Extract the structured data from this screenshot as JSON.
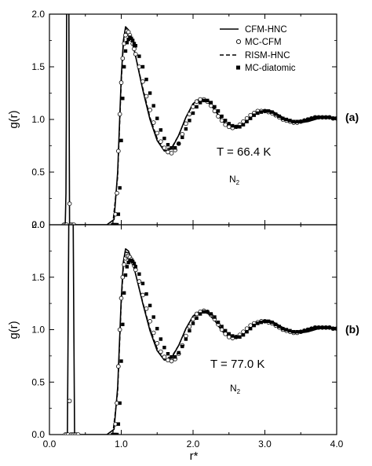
{
  "chart_data": [
    {
      "type": "line",
      "panel_label": "(a)",
      "ylabel": "g(r)",
      "xlabel": "",
      "xlim": [
        0.0,
        4.0
      ],
      "ylim": [
        0.0,
        2.0
      ],
      "y_ticks": [
        "0.0",
        "0.5",
        "1.0",
        "1.5",
        "2.0"
      ],
      "x_ticks": [],
      "annotation_temp": "T = 66.4 K",
      "annotation_mol": "N",
      "annotation_mol_sub": "2",
      "legend_position": "top-right",
      "legend": [
        {
          "label": "CFM-HNC",
          "style": "solid"
        },
        {
          "label": "MC-CFM",
          "style": "open-circle"
        },
        {
          "label": "RISM-HNC",
          "style": "dashed"
        },
        {
          "label": "MC-diatomic",
          "style": "filled-square"
        }
      ],
      "series": [
        {
          "name": "CFM-HNC",
          "style": "solid",
          "x": [
            0.22,
            0.23,
            0.235,
            0.24,
            0.25,
            0.26,
            0.27,
            0.275,
            0.28,
            0.3,
            0.4,
            0.6,
            0.8,
            0.9,
            0.95,
            1.0,
            1.03,
            1.06,
            1.1,
            1.15,
            1.2,
            1.3,
            1.4,
            1.5,
            1.6,
            1.7,
            1.8,
            1.9,
            2.0,
            2.1,
            2.2,
            2.3,
            2.4,
            2.5,
            2.6,
            2.7,
            2.8,
            2.9,
            3.0,
            3.1,
            3.2,
            3.3,
            3.4,
            3.5,
            3.6,
            3.7,
            3.8,
            3.9,
            4.0
          ],
          "y": [
            0.0,
            0.3,
            1.0,
            2.1,
            2.1,
            2.1,
            2.1,
            1.0,
            0.0,
            0.0,
            0.0,
            0.0,
            0.0,
            0.05,
            0.5,
            1.4,
            1.75,
            1.88,
            1.85,
            1.75,
            1.6,
            1.28,
            1.0,
            0.8,
            0.7,
            0.72,
            0.85,
            1.02,
            1.15,
            1.2,
            1.18,
            1.1,
            0.99,
            0.93,
            0.92,
            0.96,
            1.02,
            1.07,
            1.09,
            1.08,
            1.04,
            1.0,
            0.98,
            0.97,
            0.98,
            1.0,
            1.02,
            1.02,
            1.02
          ]
        },
        {
          "name": "RISM-HNC",
          "style": "dashed",
          "x": [
            0.88,
            0.95,
            1.0,
            1.03,
            1.06,
            1.1,
            1.15,
            1.2,
            1.3,
            1.4,
            1.5,
            1.6,
            1.7,
            1.8,
            1.9,
            2.0,
            2.1,
            2.2,
            2.3,
            2.4,
            2.5,
            2.6,
            2.7,
            2.8,
            2.9,
            3.0,
            3.1,
            3.2,
            3.3,
            3.4,
            3.5,
            3.6,
            3.7,
            3.8,
            3.9,
            4.0
          ],
          "y": [
            0.0,
            0.45,
            1.35,
            1.72,
            1.86,
            1.84,
            1.74,
            1.6,
            1.3,
            1.02,
            0.82,
            0.72,
            0.73,
            0.85,
            1.02,
            1.14,
            1.19,
            1.17,
            1.09,
            0.99,
            0.93,
            0.92,
            0.96,
            1.02,
            1.07,
            1.09,
            1.08,
            1.04,
            1.0,
            0.98,
            0.97,
            0.98,
            1.0,
            1.02,
            1.02,
            1.02
          ]
        },
        {
          "name": "MC-CFM",
          "style": "open-circle",
          "x": [
            0.2,
            0.22,
            0.24,
            0.28,
            0.3,
            0.32,
            0.34,
            0.92,
            0.94,
            0.96,
            0.98,
            1.0,
            1.02,
            1.04,
            1.06,
            1.08,
            1.1,
            1.12,
            1.14,
            1.16,
            1.18,
            1.2,
            1.25,
            1.3,
            1.35,
            1.4,
            1.45,
            1.5,
            1.55,
            1.6,
            1.65,
            1.7,
            1.75,
            1.8,
            1.85,
            1.9,
            1.95,
            2.0,
            2.05,
            2.1,
            2.15,
            2.2,
            2.25,
            2.3,
            2.35,
            2.4,
            2.45,
            2.5,
            2.55,
            2.6,
            2.65,
            2.7,
            2.75,
            2.8,
            2.85,
            2.9,
            2.95,
            3.0,
            3.05,
            3.1,
            3.15,
            3.2,
            3.25,
            3.3,
            3.35,
            3.4,
            3.45,
            3.5,
            3.55,
            3.6,
            3.65,
            3.7,
            3.75,
            3.8,
            3.85,
            3.9,
            3.95,
            4.0
          ],
          "y": [
            0.0,
            0.0,
            0.0,
            0.2,
            0.0,
            0.0,
            0.0,
            0.1,
            0.3,
            0.7,
            1.05,
            1.35,
            1.58,
            1.72,
            1.8,
            1.84,
            1.83,
            1.8,
            1.76,
            1.72,
            1.67,
            1.62,
            1.5,
            1.36,
            1.22,
            1.09,
            0.97,
            0.87,
            0.79,
            0.73,
            0.69,
            0.68,
            0.71,
            0.77,
            0.86,
            0.96,
            1.05,
            1.12,
            1.17,
            1.19,
            1.19,
            1.17,
            1.13,
            1.08,
            1.03,
            0.99,
            0.95,
            0.93,
            0.92,
            0.93,
            0.95,
            0.98,
            1.01,
            1.04,
            1.06,
            1.08,
            1.08,
            1.08,
            1.07,
            1.06,
            1.04,
            1.02,
            1.0,
            0.99,
            0.98,
            0.97,
            0.97,
            0.98,
            0.99,
            1.0,
            1.01,
            1.02,
            1.02,
            1.02,
            1.02,
            1.02,
            1.01,
            1.01
          ]
        },
        {
          "name": "MC-diatomic",
          "style": "filled-square",
          "x": [
            0.88,
            0.9,
            0.92,
            0.94,
            0.96,
            0.98,
            1.0,
            1.02,
            1.04,
            1.06,
            1.08,
            1.1,
            1.12,
            1.14,
            1.16,
            1.18,
            1.2,
            1.25,
            1.3,
            1.35,
            1.4,
            1.45,
            1.5,
            1.55,
            1.6,
            1.65,
            1.7,
            1.75,
            1.8,
            1.85,
            1.9,
            1.95,
            2.0,
            2.05,
            2.1,
            2.15,
            2.2,
            2.25,
            2.3,
            2.35,
            2.4,
            2.45,
            2.5,
            2.55,
            2.6,
            2.65,
            2.7,
            2.75,
            2.8,
            2.85,
            2.9,
            2.95,
            3.0,
            3.05,
            3.1,
            3.15,
            3.2,
            3.25,
            3.3,
            3.35,
            3.4,
            3.45,
            3.5,
            3.55,
            3.6,
            3.65,
            3.7,
            3.75,
            3.8,
            3.85,
            3.9,
            3.95,
            4.0
          ],
          "y": [
            0.0,
            0.0,
            0.0,
            0.0,
            0.1,
            0.35,
            0.8,
            1.2,
            1.5,
            1.65,
            1.73,
            1.76,
            1.78,
            1.77,
            1.75,
            1.72,
            1.7,
            1.6,
            1.5,
            1.38,
            1.25,
            1.13,
            1.01,
            0.9,
            0.82,
            0.76,
            0.73,
            0.73,
            0.77,
            0.83,
            0.91,
            0.99,
            1.06,
            1.12,
            1.16,
            1.18,
            1.18,
            1.16,
            1.12,
            1.08,
            1.03,
            0.99,
            0.96,
            0.94,
            0.93,
            0.93,
            0.95,
            0.98,
            1.01,
            1.04,
            1.06,
            1.07,
            1.08,
            1.08,
            1.07,
            1.05,
            1.03,
            1.01,
            1.0,
            0.99,
            0.98,
            0.98,
            0.98,
            0.99,
            1.0,
            1.01,
            1.02,
            1.02,
            1.02,
            1.02,
            1.02,
            1.01,
            1.01
          ]
        }
      ]
    },
    {
      "type": "line",
      "panel_label": "(b)",
      "ylabel": "g(r)",
      "xlabel": "r*",
      "xlim": [
        0.0,
        4.0
      ],
      "ylim": [
        0.0,
        2.0
      ],
      "y_ticks": [
        "0.0",
        "0.5",
        "1.0",
        "1.5",
        "2.0"
      ],
      "x_ticks": [
        "0.0",
        "1.0",
        "2.0",
        "3.0",
        "4.0"
      ],
      "annotation_temp": "T = 77.0 K",
      "annotation_mol": "N",
      "annotation_mol_sub": "2",
      "series": [
        {
          "name": "CFM-HNC",
          "style": "solid",
          "x": [
            0.25,
            0.26,
            0.27,
            0.28,
            0.29,
            0.3,
            0.31,
            0.32,
            0.33,
            0.34,
            0.35,
            0.4,
            0.6,
            0.8,
            0.9,
            0.95,
            1.0,
            1.03,
            1.06,
            1.1,
            1.15,
            1.2,
            1.3,
            1.4,
            1.5,
            1.6,
            1.7,
            1.8,
            1.9,
            2.0,
            2.1,
            2.2,
            2.3,
            2.4,
            2.5,
            2.6,
            2.7,
            2.8,
            2.9,
            3.0,
            3.1,
            3.2,
            3.3,
            3.4,
            3.5,
            3.6,
            3.7,
            3.8,
            3.9,
            4.0
          ],
          "y": [
            0.0,
            1.0,
            2.1,
            2.1,
            2.1,
            2.1,
            2.1,
            2.1,
            2.1,
            1.0,
            0.0,
            0.0,
            0.0,
            0.0,
            0.05,
            0.45,
            1.3,
            1.65,
            1.77,
            1.75,
            1.66,
            1.53,
            1.25,
            0.99,
            0.8,
            0.71,
            0.73,
            0.85,
            1.01,
            1.13,
            1.18,
            1.16,
            1.09,
            0.99,
            0.93,
            0.92,
            0.96,
            1.02,
            1.07,
            1.09,
            1.08,
            1.04,
            1.0,
            0.98,
            0.97,
            0.98,
            1.0,
            1.02,
            1.02,
            1.02
          ]
        },
        {
          "name": "RISM-HNC",
          "style": "dashed",
          "x": [
            0.88,
            0.95,
            1.0,
            1.03,
            1.06,
            1.1,
            1.15,
            1.2,
            1.3,
            1.4,
            1.5,
            1.6,
            1.7,
            1.8,
            1.9,
            2.0,
            2.1,
            2.2,
            2.3,
            2.4,
            2.5,
            2.6,
            2.7,
            2.8,
            2.9,
            3.0,
            3.1,
            3.2,
            3.3,
            3.4,
            3.5,
            3.6,
            3.7,
            3.8,
            3.9,
            4.0
          ],
          "y": [
            0.0,
            0.4,
            1.25,
            1.6,
            1.74,
            1.73,
            1.65,
            1.53,
            1.26,
            1.01,
            0.82,
            0.73,
            0.74,
            0.85,
            1.01,
            1.12,
            1.17,
            1.16,
            1.09,
            0.99,
            0.93,
            0.92,
            0.96,
            1.02,
            1.07,
            1.09,
            1.08,
            1.04,
            1.0,
            0.98,
            0.97,
            0.98,
            1.0,
            1.02,
            1.02,
            1.02
          ]
        },
        {
          "name": "MC-CFM",
          "style": "open-circle",
          "x": [
            0.22,
            0.24,
            0.26,
            0.28,
            0.3,
            0.32,
            0.34,
            0.36,
            0.38,
            0.4,
            0.92,
            0.94,
            0.96,
            0.98,
            1.0,
            1.02,
            1.04,
            1.06,
            1.08,
            1.1,
            1.12,
            1.14,
            1.16,
            1.18,
            1.2,
            1.25,
            1.3,
            1.35,
            1.4,
            1.45,
            1.5,
            1.55,
            1.6,
            1.65,
            1.7,
            1.75,
            1.8,
            1.85,
            1.9,
            1.95,
            2.0,
            2.05,
            2.1,
            2.15,
            2.2,
            2.25,
            2.3,
            2.35,
            2.4,
            2.45,
            2.5,
            2.55,
            2.6,
            2.65,
            2.7,
            2.75,
            2.8,
            2.85,
            2.9,
            2.95,
            3.0,
            3.05,
            3.1,
            3.15,
            3.2,
            3.25,
            3.3,
            3.35,
            3.4,
            3.45,
            3.5,
            3.55,
            3.6,
            3.65,
            3.7,
            3.75,
            3.8,
            3.85,
            3.9,
            3.95,
            4.0
          ],
          "y": [
            0.0,
            0.0,
            0.0,
            0.32,
            0.0,
            0.0,
            0.0,
            0.0,
            0.0,
            0.0,
            0.1,
            0.3,
            0.65,
            1.0,
            1.3,
            1.5,
            1.62,
            1.68,
            1.7,
            1.7,
            1.69,
            1.67,
            1.64,
            1.61,
            1.57,
            1.46,
            1.33,
            1.2,
            1.08,
            0.97,
            0.87,
            0.79,
            0.74,
            0.71,
            0.7,
            0.72,
            0.77,
            0.85,
            0.94,
            1.03,
            1.1,
            1.15,
            1.17,
            1.18,
            1.17,
            1.14,
            1.1,
            1.05,
            1.0,
            0.96,
            0.93,
            0.92,
            0.93,
            0.95,
            0.98,
            1.01,
            1.04,
            1.06,
            1.07,
            1.08,
            1.08,
            1.07,
            1.06,
            1.04,
            1.02,
            1.0,
            0.99,
            0.98,
            0.97,
            0.97,
            0.98,
            0.99,
            1.0,
            1.01,
            1.02,
            1.02,
            1.02,
            1.02,
            1.02,
            1.01,
            1.01
          ]
        },
        {
          "name": "MC-diatomic",
          "style": "filled-square",
          "x": [
            0.88,
            0.9,
            0.92,
            0.94,
            0.96,
            0.98,
            1.0,
            1.02,
            1.04,
            1.06,
            1.08,
            1.1,
            1.12,
            1.14,
            1.16,
            1.18,
            1.2,
            1.25,
            1.3,
            1.35,
            1.4,
            1.45,
            1.5,
            1.55,
            1.6,
            1.65,
            1.7,
            1.75,
            1.8,
            1.85,
            1.9,
            1.95,
            2.0,
            2.05,
            2.1,
            2.15,
            2.2,
            2.25,
            2.3,
            2.35,
            2.4,
            2.45,
            2.5,
            2.55,
            2.6,
            2.65,
            2.7,
            2.75,
            2.8,
            2.85,
            2.9,
            2.95,
            3.0,
            3.05,
            3.1,
            3.15,
            3.2,
            3.25,
            3.3,
            3.35,
            3.4,
            3.45,
            3.5,
            3.55,
            3.6,
            3.65,
            3.7,
            3.75,
            3.8,
            3.85,
            3.9,
            3.95,
            4.0
          ],
          "y": [
            0.0,
            0.0,
            0.0,
            0.0,
            0.1,
            0.3,
            0.7,
            1.05,
            1.35,
            1.52,
            1.6,
            1.64,
            1.66,
            1.66,
            1.65,
            1.63,
            1.6,
            1.53,
            1.44,
            1.34,
            1.23,
            1.12,
            1.01,
            0.91,
            0.83,
            0.77,
            0.74,
            0.74,
            0.78,
            0.84,
            0.91,
            0.99,
            1.06,
            1.11,
            1.15,
            1.17,
            1.17,
            1.15,
            1.12,
            1.07,
            1.03,
            0.99,
            0.96,
            0.94,
            0.93,
            0.93,
            0.95,
            0.98,
            1.01,
            1.04,
            1.06,
            1.07,
            1.08,
            1.08,
            1.07,
            1.05,
            1.03,
            1.01,
            1.0,
            0.99,
            0.98,
            0.98,
            0.98,
            0.99,
            1.0,
            1.01,
            1.02,
            1.02,
            1.02,
            1.02,
            1.02,
            1.01,
            1.01
          ]
        }
      ]
    }
  ]
}
